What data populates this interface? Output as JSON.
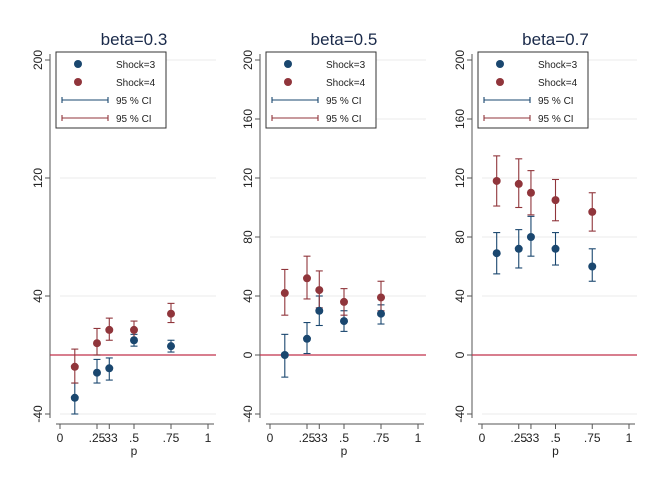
{
  "chart_data": [
    {
      "type": "scatter",
      "title": "beta=0.3",
      "xlabel": "p",
      "ylabel": "",
      "xlim": [
        0,
        1
      ],
      "ylim": [
        -40,
        200
      ],
      "xticks": [
        0,
        0.25,
        0.333,
        0.5,
        0.75,
        1
      ],
      "xtick_labels": [
        "0",
        ".25",
        ".33",
        ".5",
        ".75",
        "1"
      ],
      "yticks": [
        -40,
        40,
        120,
        200
      ],
      "ytick_labels": [
        "-40",
        "40",
        "120",
        "200"
      ],
      "reference_line_y": 0,
      "grid": "horizontal",
      "legend_position": "top-left",
      "series": [
        {
          "name": "Shock=3",
          "color": "#1a476f",
          "x": [
            0.1,
            0.25,
            0.333,
            0.5,
            0.75
          ],
          "y": [
            -29,
            -12,
            -9,
            10,
            6
          ],
          "ci_low": [
            -40,
            -19,
            -17,
            6,
            2
          ],
          "ci_high": [
            -19,
            -3,
            -2,
            14,
            10
          ]
        },
        {
          "name": "Shock=4",
          "color": "#90353b",
          "x": [
            0.1,
            0.25,
            0.333,
            0.5,
            0.75
          ],
          "y": [
            -8,
            8,
            17,
            17,
            28
          ],
          "ci_low": [
            -19,
            0,
            10,
            11,
            22
          ],
          "ci_high": [
            4,
            18,
            25,
            23,
            35
          ]
        }
      ],
      "legend": [
        {
          "label": "Shock=3",
          "symbol": "dot",
          "color": "#1a476f"
        },
        {
          "label": "Shock=4",
          "symbol": "dot",
          "color": "#90353b"
        },
        {
          "label": "95 % CI",
          "symbol": "ci",
          "color": "#1a476f"
        },
        {
          "label": "95 % CI",
          "symbol": "ci",
          "color": "#90353b"
        }
      ]
    },
    {
      "type": "scatter",
      "title": "beta=0.5",
      "xlabel": "p",
      "ylabel": "",
      "xlim": [
        0,
        1
      ],
      "ylim": [
        -40,
        200
      ],
      "xticks": [
        0,
        0.25,
        0.333,
        0.5,
        0.75,
        1
      ],
      "xtick_labels": [
        "0",
        ".25",
        ".33",
        ".5",
        ".75",
        "1"
      ],
      "yticks": [
        -40,
        0,
        40,
        80,
        120,
        160,
        200
      ],
      "ytick_labels": [
        "-40",
        "0",
        "40",
        "80",
        "120",
        "160",
        "200"
      ],
      "reference_line_y": 0,
      "grid": "horizontal",
      "legend_position": "top-left",
      "series": [
        {
          "name": "Shock=3",
          "color": "#1a476f",
          "x": [
            0.1,
            0.25,
            0.333,
            0.5,
            0.75
          ],
          "y": [
            0,
            11,
            30,
            23,
            28
          ],
          "ci_low": [
            -15,
            1,
            20,
            16,
            21
          ],
          "ci_high": [
            14,
            22,
            40,
            30,
            34
          ]
        },
        {
          "name": "Shock=4",
          "color": "#90353b",
          "x": [
            0.1,
            0.25,
            0.333,
            0.5,
            0.75
          ],
          "y": [
            42,
            52,
            44,
            36,
            39
          ],
          "ci_low": [
            27,
            38,
            32,
            27,
            30
          ],
          "ci_high": [
            58,
            67,
            57,
            45,
            50
          ]
        }
      ],
      "legend": [
        {
          "label": "Shock=3",
          "symbol": "dot",
          "color": "#1a476f"
        },
        {
          "label": "Shock=4",
          "symbol": "dot",
          "color": "#90353b"
        },
        {
          "label": "95 % CI",
          "symbol": "ci",
          "color": "#1a476f"
        },
        {
          "label": "95 % CI",
          "symbol": "ci",
          "color": "#90353b"
        }
      ]
    },
    {
      "type": "scatter",
      "title": "beta=0.7",
      "xlabel": "p",
      "ylabel": "",
      "xlim": [
        0,
        1
      ],
      "ylim": [
        -40,
        200
      ],
      "xticks": [
        0,
        0.25,
        0.333,
        0.5,
        0.75,
        1
      ],
      "xtick_labels": [
        "0",
        ".25",
        ".33",
        ".5",
        ".75",
        "1"
      ],
      "yticks": [
        -40,
        0,
        40,
        80,
        120,
        160,
        200
      ],
      "ytick_labels": [
        "-40",
        "0",
        "40",
        "80",
        "120",
        "160",
        "200"
      ],
      "reference_line_y": 0,
      "grid": "horizontal",
      "legend_position": "top-left",
      "series": [
        {
          "name": "Shock=3",
          "color": "#1a476f",
          "x": [
            0.1,
            0.25,
            0.333,
            0.5,
            0.75
          ],
          "y": [
            69,
            72,
            80,
            72,
            60
          ],
          "ci_low": [
            55,
            59,
            67,
            61,
            50
          ],
          "ci_high": [
            83,
            85,
            94,
            83,
            72
          ]
        },
        {
          "name": "Shock=4",
          "color": "#90353b",
          "x": [
            0.1,
            0.25,
            0.333,
            0.5,
            0.75
          ],
          "y": [
            118,
            116,
            110,
            105,
            97
          ],
          "ci_low": [
            101,
            100,
            95,
            91,
            84
          ],
          "ci_high": [
            135,
            133,
            125,
            119,
            110
          ]
        }
      ],
      "legend": [
        {
          "label": "Shock=3",
          "symbol": "dot",
          "color": "#1a476f"
        },
        {
          "label": "Shock=4",
          "symbol": "dot",
          "color": "#90353b"
        },
        {
          "label": "95 % CI",
          "symbol": "ci",
          "color": "#1a476f"
        },
        {
          "label": "95 % CI",
          "symbol": "ci",
          "color": "#90353b"
        }
      ]
    }
  ],
  "colors": {
    "reference_line": "#c0304a",
    "grid": "#ebebeb",
    "axis": "#555555",
    "title": "#1a2a4a"
  }
}
